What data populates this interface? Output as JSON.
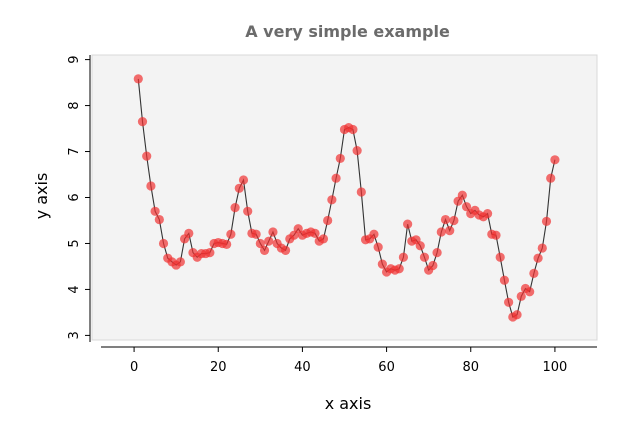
{
  "chart_data": {
    "type": "line",
    "title": "A very simple example",
    "xlabel": "x axis",
    "ylabel": "y axis",
    "xlim": [
      -10,
      110
    ],
    "ylim": [
      2.9,
      9.1
    ],
    "xticks": [
      0,
      20,
      40,
      60,
      80,
      100
    ],
    "yticks": [
      3,
      4,
      5,
      6,
      7,
      8,
      9
    ],
    "grid": false,
    "plot_background": "#f3f3f3",
    "title_color": "#6b6b6b",
    "series": [
      {
        "line_color": "#333333",
        "marker_color": "#f03030",
        "x": [
          1,
          2,
          3,
          4,
          5,
          6,
          7,
          8,
          9,
          10,
          11,
          12,
          13,
          14,
          15,
          16,
          17,
          18,
          19,
          20,
          21,
          22,
          23,
          24,
          25,
          26,
          27,
          28,
          29,
          30,
          31,
          32,
          33,
          34,
          35,
          36,
          37,
          38,
          39,
          40,
          41,
          42,
          43,
          44,
          45,
          46,
          47,
          48,
          49,
          50,
          51,
          52,
          53,
          54,
          55,
          56,
          57,
          58,
          59,
          60,
          61,
          62,
          63,
          64,
          65,
          66,
          67,
          68,
          69,
          70,
          71,
          72,
          73,
          74,
          75,
          76,
          77,
          78,
          79,
          80,
          81,
          82,
          83,
          84,
          85,
          86,
          87,
          88,
          89,
          90,
          91,
          92,
          93,
          94,
          95,
          96,
          97,
          98,
          99,
          100
        ],
        "y": [
          8.58,
          7.65,
          6.9,
          6.25,
          5.7,
          5.52,
          5.0,
          4.68,
          4.6,
          4.53,
          4.6,
          5.1,
          5.22,
          4.8,
          4.7,
          4.78,
          4.78,
          4.8,
          5.0,
          5.02,
          5.0,
          4.98,
          5.2,
          5.78,
          6.2,
          6.38,
          5.7,
          5.22,
          5.2,
          5.0,
          4.85,
          5.05,
          5.25,
          5.0,
          4.9,
          4.85,
          5.1,
          5.18,
          5.32,
          5.18,
          5.22,
          5.25,
          5.22,
          5.05,
          5.1,
          5.5,
          5.95,
          6.42,
          6.85,
          7.48,
          7.52,
          7.48,
          7.02,
          6.12,
          5.08,
          5.1,
          5.2,
          4.92,
          4.55,
          4.38,
          4.45,
          4.42,
          4.45,
          4.7,
          5.42,
          5.05,
          5.08,
          4.95,
          4.7,
          4.42,
          4.52,
          4.8,
          5.25,
          5.52,
          5.28,
          5.5,
          5.92,
          6.05,
          5.8,
          5.65,
          5.72,
          5.62,
          5.58,
          5.65,
          5.2,
          5.18,
          4.7,
          4.2,
          3.72,
          3.4,
          3.45,
          3.85,
          4.02,
          3.95,
          4.35,
          4.68,
          4.9,
          5.48,
          6.42,
          6.82
        ]
      }
    ]
  }
}
